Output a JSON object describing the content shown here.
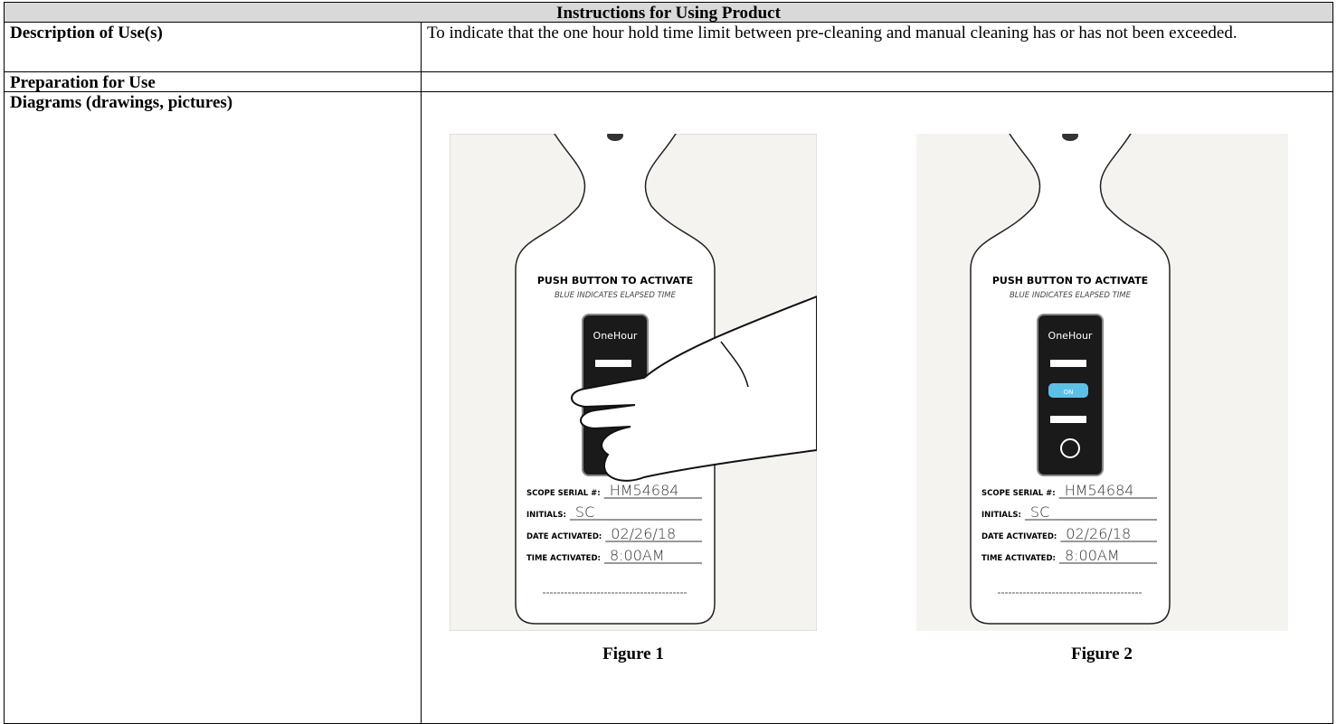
{
  "table": {
    "title": "Instructions for Using Product",
    "rows": [
      {
        "label": "Description of Use(s)",
        "text": "To indicate that the one hour hold time limit between pre-cleaning and manual cleaning has or has not been exceeded."
      },
      {
        "label": "Preparation for Use"
      },
      {
        "label": "Diagrams (drawings, pictures)",
        "figures": [
          {
            "caption": "Figure 1",
            "tag": {
              "heading": "PUSH BUTTON TO ACTIVATE",
              "subheading": "BLUE INDICATES ELAPSED TIME",
              "brand": "OneHour",
              "fields": [
                {
                  "label": "SCOPE SERIAL #:",
                  "value": "HM54684"
                },
                {
                  "label": "INITIALS:",
                  "value": "SC"
                },
                {
                  "label": "DATE ACTIVATED:",
                  "value": "02/26/18"
                },
                {
                  "label": "TIME ACTIVATED:",
                  "value": "8:00AM"
                }
              ]
            }
          },
          {
            "caption": "Figure 2",
            "tag": {
              "heading": "PUSH BUTTON TO ACTIVATE",
              "subheading": "BLUE INDICATES ELAPSED TIME",
              "brand": "OneHour",
              "indicator": "ON",
              "fields": [
                {
                  "label": "SCOPE SERIAL #:",
                  "value": "HM54684"
                },
                {
                  "label": "INITIALS:",
                  "value": "SC"
                },
                {
                  "label": "DATE ACTIVATED:",
                  "value": "02/26/18"
                },
                {
                  "label": "TIME ACTIVATED:",
                  "value": "8:00AM"
                }
              ]
            }
          }
        ]
      }
    ]
  }
}
